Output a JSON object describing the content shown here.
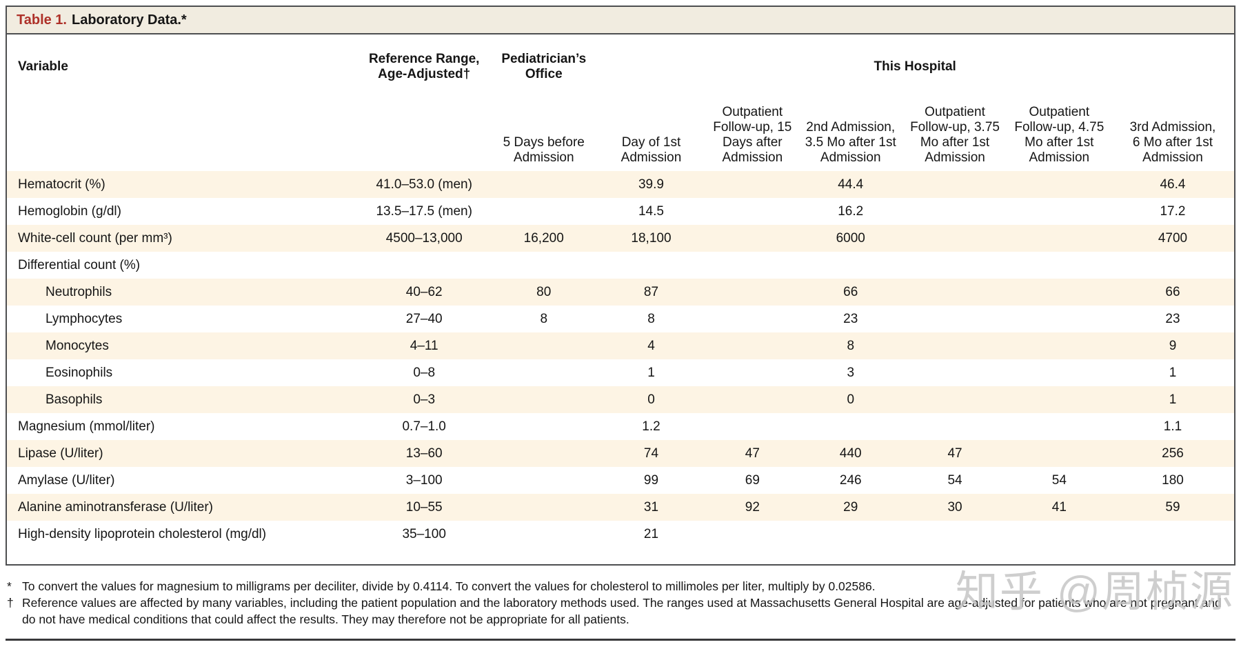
{
  "colors": {
    "accent_red": "#ae3129",
    "stripe": "#fdf4e4",
    "titlebar_bg": "#f1ece0",
    "border_gray": "#4d4e50",
    "watermark_gray": "#c6c6c6"
  },
  "title": {
    "label": "Table 1.",
    "text": "Laboratory Data.*"
  },
  "header": {
    "variable": "Variable",
    "ref_line1": "Reference Range,",
    "ref_line2": "Age-Adjusted†",
    "ped_line1": "Pediatrician’s",
    "ped_line2": "Office",
    "group": "This Hospital",
    "sub": [
      "5 Days before Admission",
      "Day of 1st Admission",
      "Outpatient Follow-up, 15 Days after Admission",
      "2nd Admission, 3.5 Mo after 1st Admission",
      "Outpatient Follow-up, 3.75 Mo after 1st Admission",
      "Outpatient Follow-up, 4.75 Mo after 1st Admission",
      "3rd Admission, 6 Mo after 1st Admission"
    ]
  },
  "rows": [
    {
      "label": "Hematocrit (%)",
      "indent": false,
      "values": [
        "41.0–53.0 (men)",
        "",
        "39.9",
        "",
        "44.4",
        "",
        "",
        "46.4"
      ]
    },
    {
      "label": "Hemoglobin (g/dl)",
      "indent": false,
      "values": [
        "13.5–17.5 (men)",
        "",
        "14.5",
        "",
        "16.2",
        "",
        "",
        "17.2"
      ]
    },
    {
      "label": "White-cell count (per mm³)",
      "indent": false,
      "values": [
        "4500–13,000",
        "16,200",
        "18,100",
        "",
        "6000",
        "",
        "",
        "4700"
      ]
    },
    {
      "label": "Differential count (%)",
      "indent": false,
      "values": [
        "",
        "",
        "",
        "",
        "",
        "",
        "",
        ""
      ]
    },
    {
      "label": "Neutrophils",
      "indent": true,
      "values": [
        "40–62",
        "80",
        "87",
        "",
        "66",
        "",
        "",
        "66"
      ]
    },
    {
      "label": "Lymphocytes",
      "indent": true,
      "values": [
        "27–40",
        "8",
        "8",
        "",
        "23",
        "",
        "",
        "23"
      ]
    },
    {
      "label": "Monocytes",
      "indent": true,
      "values": [
        "4–11",
        "",
        "4",
        "",
        "8",
        "",
        "",
        "9"
      ]
    },
    {
      "label": "Eosinophils",
      "indent": true,
      "values": [
        "0–8",
        "",
        "1",
        "",
        "3",
        "",
        "",
        "1"
      ]
    },
    {
      "label": "Basophils",
      "indent": true,
      "values": [
        "0–3",
        "",
        "0",
        "",
        "0",
        "",
        "",
        "1"
      ]
    },
    {
      "label": "Magnesium (mmol/liter)",
      "indent": false,
      "values": [
        "0.7–1.0",
        "",
        "1.2",
        "",
        "",
        "",
        "",
        "1.1"
      ]
    },
    {
      "label": "Lipase (U/liter)",
      "indent": false,
      "values": [
        "13–60",
        "",
        "74",
        "47",
        "440",
        "47",
        "",
        "256"
      ]
    },
    {
      "label": "Amylase (U/liter)",
      "indent": false,
      "values": [
        "3–100",
        "",
        "99",
        "69",
        "246",
        "54",
        "54",
        "180"
      ]
    },
    {
      "label": "Alanine aminotransferase (U/liter)",
      "indent": false,
      "values": [
        "10–55",
        "",
        "31",
        "92",
        "29",
        "30",
        "41",
        "59"
      ]
    },
    {
      "label": "High-density lipoprotein cholesterol (mg/dl)",
      "indent": false,
      "values": [
        "35–100",
        "",
        "21",
        "",
        "",
        "",
        "",
        ""
      ]
    }
  ],
  "footnotes": [
    {
      "marker": "*",
      "text": "To convert the values for magnesium to milligrams per deciliter, divide by 0.4114. To convert the values for cholesterol to millimoles per liter, multiply by 0.02586."
    },
    {
      "marker": "†",
      "text": "Reference values are affected by many variables, including the patient population and the laboratory methods used. The ranges used at Massachusetts General Hospital are age-adjusted for patients who are not pregnant and do not have medical conditions that could affect the results. They may therefore not be appropriate for all patients."
    }
  ],
  "watermark": "知乎 @周桢源"
}
